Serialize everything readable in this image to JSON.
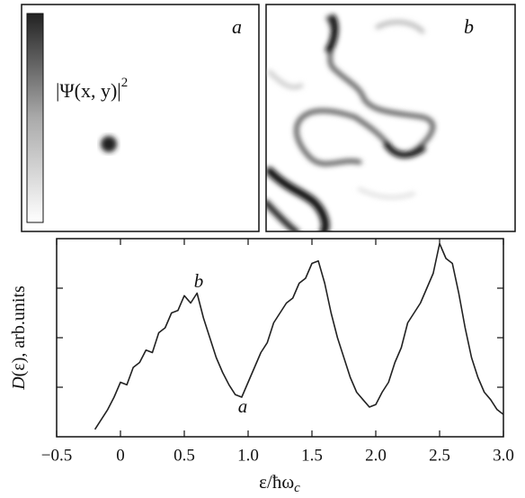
{
  "chart_data": {
    "type": "line",
    "panels": [
      {
        "label": "a"
      },
      {
        "label": "b"
      }
    ],
    "colorbar_label": {
      "text": "|Ψ(x, y)|",
      "power": "2"
    },
    "xlabel": {
      "text": "ε/ħω",
      "sub": "c"
    },
    "ylabel": {
      "italic": "D",
      "text": "(ε), arb.units"
    },
    "annotations": [
      "b",
      "a"
    ],
    "xlim": [
      -0.5,
      3.0
    ],
    "xticks": [
      {
        "value": -0.5,
        "label": "−0.5"
      },
      0,
      0.5,
      {
        "value": 1.0,
        "label": "1.0"
      },
      1.5,
      {
        "value": 2.0,
        "label": "2.0"
      },
      2.5,
      {
        "value": 3.0,
        "label": "3.0"
      }
    ],
    "ylim": [
      0,
      4
    ],
    "yticks": [
      1,
      2,
      3
    ],
    "color": "#222222",
    "x": [
      -0.2,
      -0.15,
      -0.1,
      -0.05,
      0,
      0.05,
      0.1,
      0.15,
      0.2,
      0.25,
      0.3,
      0.35,
      0.4,
      0.45,
      0.5,
      0.55,
      0.6,
      0.65,
      0.7,
      0.75,
      0.8,
      0.85,
      0.9,
      0.95,
      1.0,
      1.05,
      1.1,
      1.15,
      1.2,
      1.25,
      1.3,
      1.35,
      1.4,
      1.45,
      1.5,
      1.55,
      1.6,
      1.65,
      1.7,
      1.75,
      1.8,
      1.85,
      1.9,
      1.95,
      2.0,
      2.05,
      2.1,
      2.15,
      2.2,
      2.25,
      2.3,
      2.35,
      2.4,
      2.45,
      2.5,
      2.55,
      2.6,
      2.65,
      2.7,
      2.75,
      2.8,
      2.85,
      2.9,
      2.95,
      3.0
    ],
    "values": [
      0.15,
      0.35,
      0.55,
      0.8,
      1.1,
      1.05,
      1.4,
      1.5,
      1.75,
      1.7,
      2.1,
      2.2,
      2.5,
      2.55,
      2.85,
      2.7,
      2.9,
      2.4,
      2.0,
      1.6,
      1.3,
      1.05,
      0.85,
      0.8,
      1.1,
      1.4,
      1.7,
      1.9,
      2.3,
      2.5,
      2.7,
      2.8,
      3.1,
      3.2,
      3.5,
      3.55,
      3.1,
      2.5,
      2.0,
      1.6,
      1.2,
      0.9,
      0.75,
      0.6,
      0.65,
      0.9,
      1.1,
      1.5,
      1.8,
      2.3,
      2.5,
      2.7,
      3.0,
      3.3,
      3.9,
      3.6,
      3.5,
      2.9,
      2.2,
      1.6,
      1.2,
      0.9,
      0.75,
      0.55,
      0.45
    ]
  }
}
